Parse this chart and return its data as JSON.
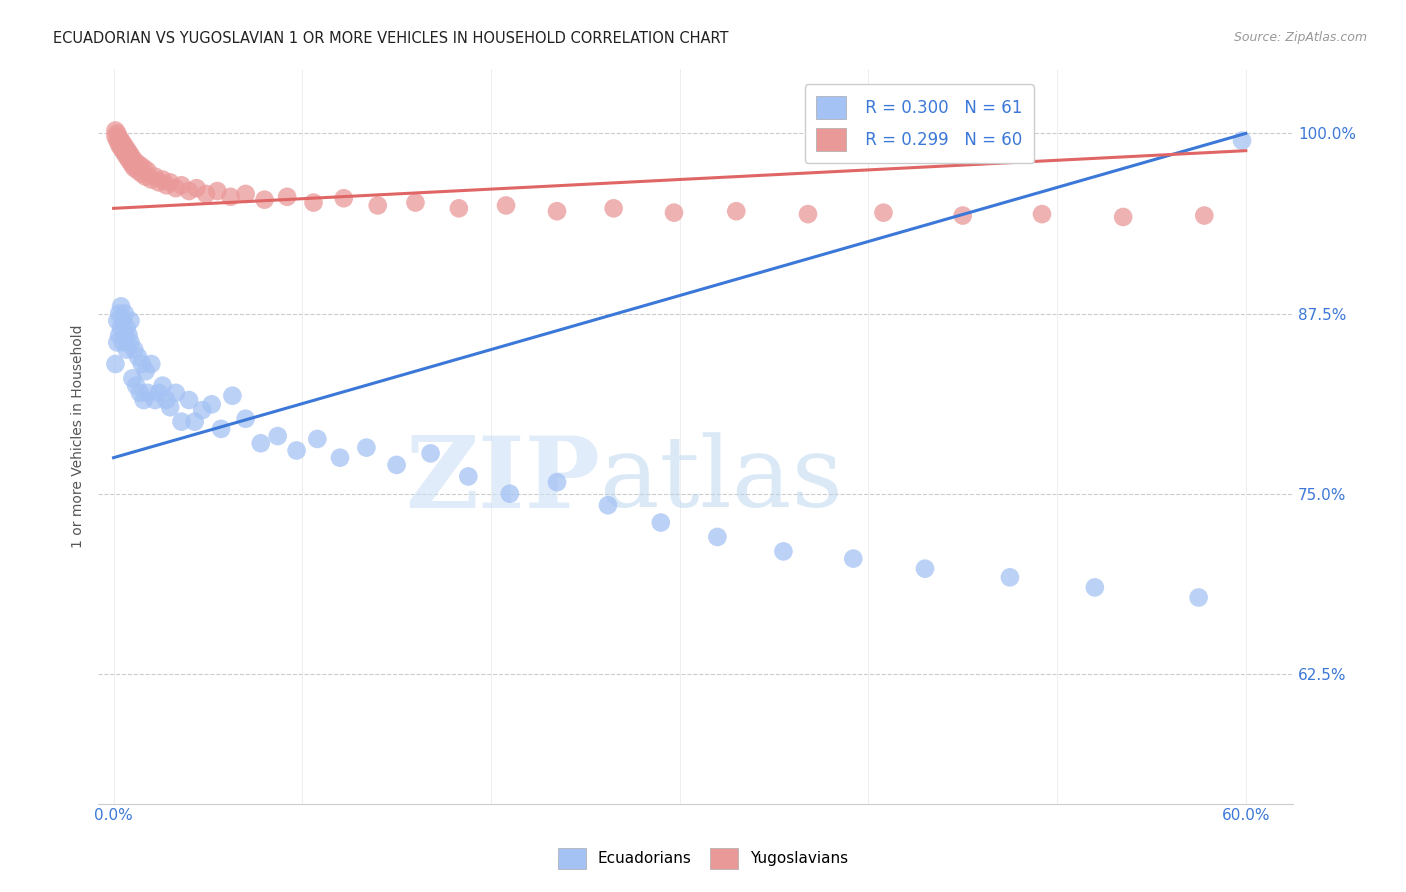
{
  "title": "ECUADORIAN VS YUGOSLAVIAN 1 OR MORE VEHICLES IN HOUSEHOLD CORRELATION CHART",
  "source": "Source: ZipAtlas.com",
  "xtick_vals": [
    0.0,
    0.6
  ],
  "xtick_labels": [
    "0.0%",
    "60.0%"
  ],
  "ytick_vals": [
    0.625,
    0.75,
    0.875,
    1.0
  ],
  "ytick_labels": [
    "62.5%",
    "75.0%",
    "87.5%",
    "100.0%"
  ],
  "xlim": [
    -0.008,
    0.625
  ],
  "ylim": [
    0.535,
    1.045
  ],
  "blue_R": 0.3,
  "blue_N": 61,
  "pink_R": 0.299,
  "pink_N": 60,
  "blue_color": "#a4c2f4",
  "pink_color": "#ea9999",
  "blue_line_color": "#3c78d8",
  "pink_line_color": "#e06666",
  "blue_line_x": [
    0.0,
    0.6
  ],
  "blue_line_y": [
    0.775,
    1.0
  ],
  "pink_line_x": [
    0.0,
    0.6
  ],
  "pink_line_y": [
    0.948,
    0.988
  ],
  "grid_color": "#cccccc",
  "background_color": "#ffffff",
  "ylabel": "1 or more Vehicles in Household",
  "legend_color": "#3c78d8",
  "watermark_zip_color": "#cce0f5",
  "watermark_atlas_color": "#b8d4f0",
  "blue_scatter_x": [
    0.001,
    0.002,
    0.002,
    0.003,
    0.003,
    0.004,
    0.004,
    0.005,
    0.005,
    0.006,
    0.006,
    0.007,
    0.007,
    0.008,
    0.009,
    0.009,
    0.01,
    0.011,
    0.012,
    0.013,
    0.014,
    0.015,
    0.016,
    0.017,
    0.018,
    0.02,
    0.022,
    0.024,
    0.026,
    0.028,
    0.03,
    0.033,
    0.036,
    0.04,
    0.043,
    0.047,
    0.052,
    0.057,
    0.063,
    0.07,
    0.078,
    0.087,
    0.097,
    0.108,
    0.12,
    0.134,
    0.15,
    0.168,
    0.188,
    0.21,
    0.235,
    0.262,
    0.29,
    0.32,
    0.355,
    0.392,
    0.43,
    0.475,
    0.52,
    0.575,
    0.598
  ],
  "blue_scatter_y": [
    0.84,
    0.855,
    0.87,
    0.86,
    0.875,
    0.865,
    0.88,
    0.855,
    0.87,
    0.86,
    0.875,
    0.85,
    0.865,
    0.86,
    0.855,
    0.87,
    0.83,
    0.85,
    0.825,
    0.845,
    0.82,
    0.84,
    0.815,
    0.835,
    0.82,
    0.84,
    0.815,
    0.82,
    0.825,
    0.815,
    0.81,
    0.82,
    0.8,
    0.815,
    0.8,
    0.808,
    0.812,
    0.795,
    0.818,
    0.802,
    0.785,
    0.79,
    0.78,
    0.788,
    0.775,
    0.782,
    0.77,
    0.778,
    0.762,
    0.75,
    0.758,
    0.742,
    0.73,
    0.72,
    0.71,
    0.705,
    0.698,
    0.692,
    0.685,
    0.678,
    0.995
  ],
  "pink_scatter_x": [
    0.001,
    0.001,
    0.002,
    0.002,
    0.003,
    0.003,
    0.004,
    0.004,
    0.005,
    0.005,
    0.006,
    0.006,
    0.007,
    0.007,
    0.008,
    0.008,
    0.009,
    0.009,
    0.01,
    0.01,
    0.011,
    0.012,
    0.013,
    0.014,
    0.015,
    0.016,
    0.017,
    0.018,
    0.02,
    0.022,
    0.024,
    0.026,
    0.028,
    0.03,
    0.033,
    0.036,
    0.04,
    0.044,
    0.049,
    0.055,
    0.062,
    0.07,
    0.08,
    0.092,
    0.106,
    0.122,
    0.14,
    0.16,
    0.183,
    0.208,
    0.235,
    0.265,
    0.297,
    0.33,
    0.368,
    0.408,
    0.45,
    0.492,
    0.535,
    0.578
  ],
  "pink_scatter_y": [
    0.998,
    1.002,
    0.995,
    1.0,
    0.992,
    0.997,
    0.99,
    0.995,
    0.988,
    0.993,
    0.986,
    0.991,
    0.984,
    0.989,
    0.982,
    0.987,
    0.98,
    0.985,
    0.978,
    0.983,
    0.976,
    0.98,
    0.974,
    0.978,
    0.972,
    0.976,
    0.97,
    0.974,
    0.968,
    0.97,
    0.966,
    0.968,
    0.964,
    0.966,
    0.962,
    0.964,
    0.96,
    0.962,
    0.958,
    0.96,
    0.956,
    0.958,
    0.954,
    0.956,
    0.952,
    0.955,
    0.95,
    0.952,
    0.948,
    0.95,
    0.946,
    0.948,
    0.945,
    0.946,
    0.944,
    0.945,
    0.943,
    0.944,
    0.942,
    0.943
  ]
}
